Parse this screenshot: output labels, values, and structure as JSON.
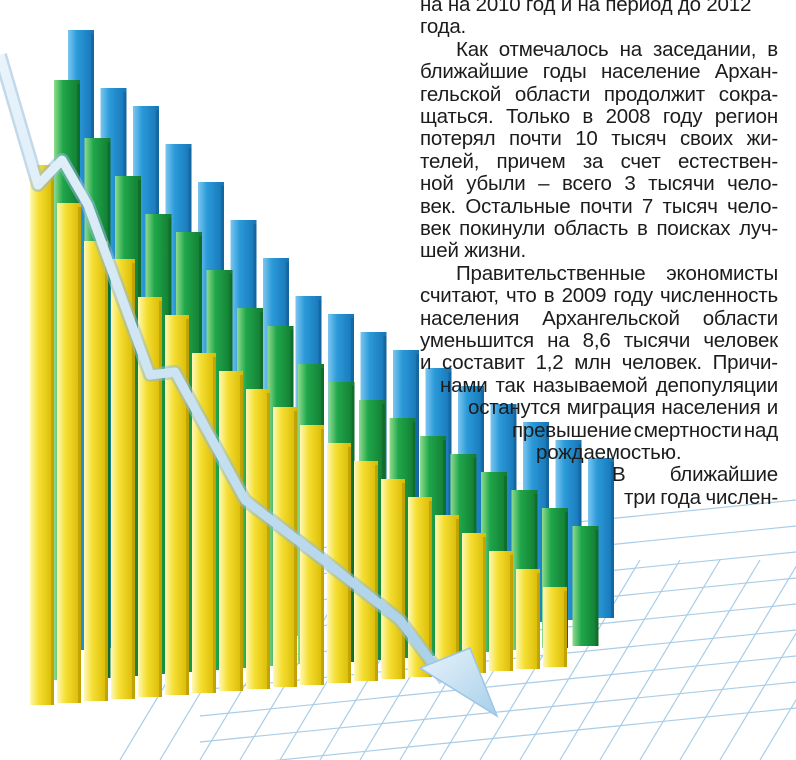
{
  "article": {
    "lines": [
      "на на 2010 год и на период до 2012",
      "года.",
      "Как отмечалось на заседании, в",
      "ближайшие годы население Архан-",
      "гельской области продолжит сокра-",
      "щаться. Только в 2008 году регион",
      "потерял почти 10 тысяч своих жи-",
      "телей, причем за счет естествен-",
      "ной убыли – всего 3 тысячи чело-",
      "век. Остальные почти 7 тысяч чело-",
      "век покинули область в поисках луч-",
      "шей жизни.",
      "Правительственные экономисты",
      "считают, что в 2009 году численность",
      "населения Архангельской области",
      "уменьшится на 8,6 тысячи человек",
      "и составит 1,2 млн человек. Причи-",
      "нами так называемой депопуляции",
      "останутся миграция населения и",
      "превышение смертности над",
      "рождаемостью.",
      "В ближайшие",
      "три года числен-"
    ]
  },
  "illustration": {
    "description_colors": {
      "blue": "#2d9bdc",
      "green": "#1fa64a",
      "yellow": "#f3dc2a",
      "arrow": "#bcd9ee",
      "grid": "#9cc6e4"
    },
    "series": [
      {
        "values": [
          31,
          28,
          27,
          25,
          23,
          21,
          19,
          17,
          16,
          15,
          14,
          13,
          12,
          11,
          10,
          9,
          8
        ]
      },
      {
        "values": [
          30,
          27,
          25,
          23,
          22,
          20,
          18,
          17,
          15,
          14,
          13,
          12,
          11,
          10,
          9,
          8,
          7,
          6
        ]
      },
      {
        "values": [
          27,
          25,
          23,
          22,
          20,
          19,
          17,
          16,
          15,
          14,
          13,
          12,
          11,
          10,
          9,
          8,
          7,
          6,
          5,
          4
        ]
      }
    ]
  }
}
